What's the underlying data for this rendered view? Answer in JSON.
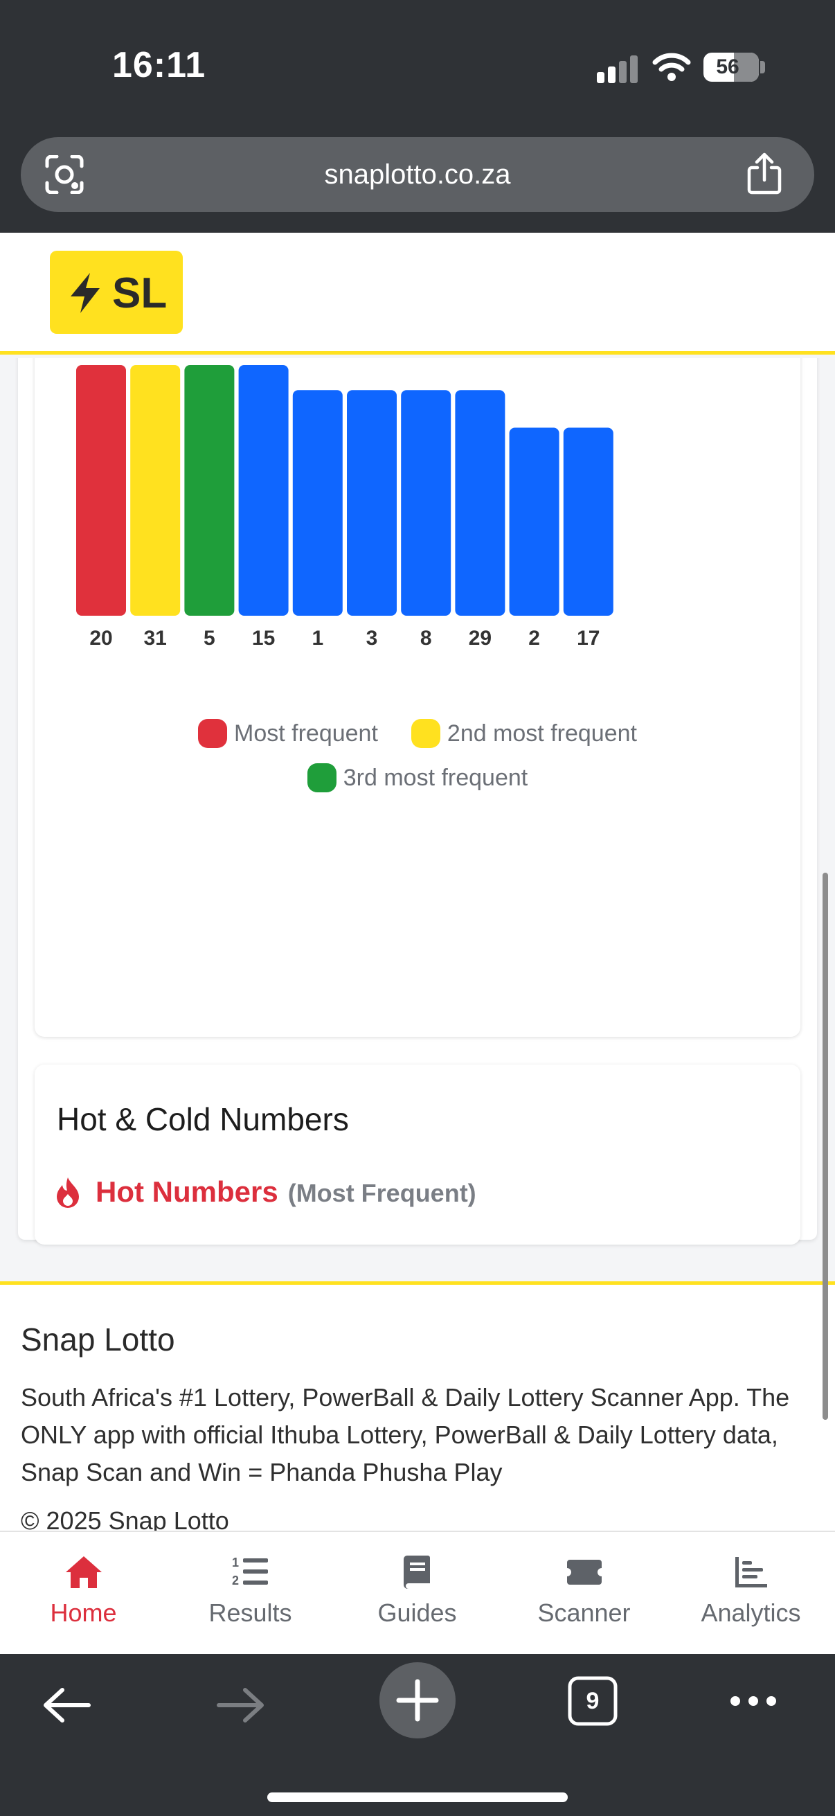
{
  "status_bar": {
    "time": "16:11",
    "battery": "56"
  },
  "browser": {
    "url": "snaplotto.co.za",
    "tab_count": "9"
  },
  "header": {
    "logo_text": "SL"
  },
  "chart_data": {
    "type": "bar",
    "categories": [
      "20",
      "31",
      "5",
      "15",
      "1",
      "3",
      "8",
      "29",
      "2",
      "17"
    ],
    "values": [
      10,
      10,
      10,
      10,
      9,
      9,
      9,
      9,
      7.5,
      7.5
    ],
    "colors": [
      "#e0313c",
      "#ffe11f",
      "#1f9e3a",
      "#0f66ff",
      "#0f66ff",
      "#0f66ff",
      "#0f66ff",
      "#0f66ff",
      "#0f66ff",
      "#0f66ff"
    ],
    "legend": [
      {
        "label": "Most frequent",
        "color": "#e0313c"
      },
      {
        "label": "2nd most frequent",
        "color": "#ffe11f"
      },
      {
        "label": "3rd most frequent",
        "color": "#1f9e3a"
      }
    ],
    "legend_placement": "bottom-center",
    "grid": false
  },
  "hot_cold": {
    "title": "Hot & Cold Numbers",
    "hot_label": "Hot Numbers",
    "hot_sub": "(Most Frequent)"
  },
  "footer": {
    "title": "Snap Lotto",
    "description": "South Africa's #1 Lottery, PowerBall & Daily Lottery Scanner App. The ONLY app with official Ithuba Lottery, PowerBall & Daily Lottery data, Snap Scan and Win = Phanda Phusha Play",
    "copyright": "© 2025 Snap Lotto"
  },
  "bottom_nav": [
    {
      "label": "Home",
      "icon": "home-icon",
      "active": true
    },
    {
      "label": "Results",
      "icon": "list-ordered-icon",
      "active": false
    },
    {
      "label": "Guides",
      "icon": "book-icon",
      "active": false
    },
    {
      "label": "Scanner",
      "icon": "ticket-icon",
      "active": false
    },
    {
      "label": "Analytics",
      "icon": "bar-chart-icon",
      "active": false
    }
  ],
  "colors": {
    "accent": "#dc2f3d",
    "brand_yellow": "#ffe11f",
    "bar_blue": "#0f66ff"
  }
}
